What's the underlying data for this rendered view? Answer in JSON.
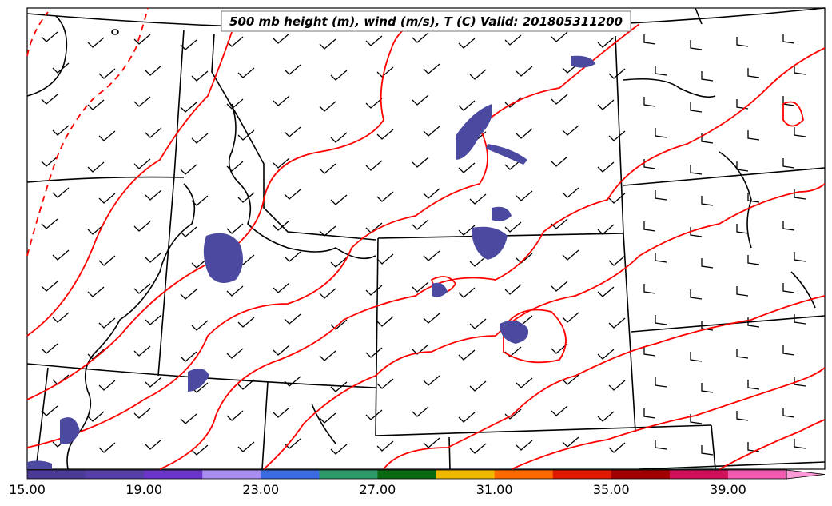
{
  "title": "500 mb height (m), wind (m/s), T (C) Valid: 201805311200",
  "colorbar": {
    "colors": [
      "#4b3a96",
      "#553ea6",
      "#6a35c8",
      "#a98cf0",
      "#3a6be0",
      "#2e9a6a",
      "#0a6a10",
      "#f0b800",
      "#ff6a00",
      "#e01a00",
      "#a00000",
      "#d0105a",
      "#f05ab0",
      "#ff9ad8"
    ],
    "tick_labels": [
      "15.00",
      "19.00",
      "23.00",
      "27.00",
      "31.00",
      "35.00",
      "39.00"
    ]
  },
  "colors": {
    "contour_height": "#ff0000",
    "boundaries": "#000000",
    "shading": "#4b4aa0"
  }
}
